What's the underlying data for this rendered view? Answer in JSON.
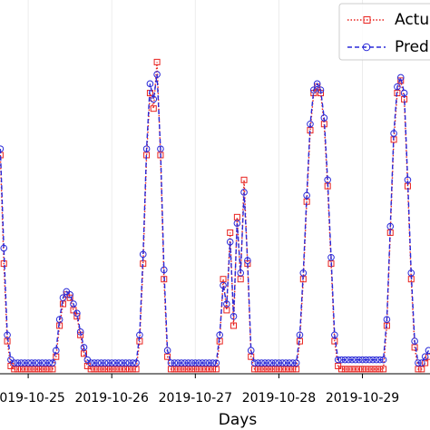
{
  "chart_data": {
    "type": "line",
    "x_label": "Days",
    "x": [
      -8,
      -7,
      -6,
      -5,
      -4,
      -3,
      -2,
      -1,
      0,
      1,
      2,
      3,
      4,
      5,
      6,
      7,
      8,
      9,
      10,
      11,
      12,
      13,
      14,
      15,
      16,
      17,
      18,
      19,
      20,
      21,
      22,
      23,
      24,
      25,
      26,
      27,
      28,
      29,
      30,
      31,
      32,
      33,
      34,
      35,
      36,
      37,
      38,
      39,
      40,
      41,
      42,
      43,
      44,
      45,
      46,
      47,
      48,
      49,
      50,
      51,
      52,
      53,
      54,
      55,
      56,
      57,
      58,
      59,
      60,
      61,
      62,
      63,
      64,
      65,
      66,
      67,
      68,
      69,
      70,
      71,
      72,
      73,
      74,
      75,
      76,
      77,
      78,
      79,
      80,
      81,
      82,
      83,
      84,
      85,
      86,
      87,
      88,
      89,
      90,
      91,
      92,
      93,
      94,
      95,
      96,
      97,
      98,
      99,
      100,
      101,
      102,
      103,
      104,
      105,
      106,
      107,
      108,
      109,
      110,
      111,
      112,
      113,
      114,
      115
    ],
    "series": [
      {
        "name": "Actu",
        "color": "#e8221e",
        "marker": "square",
        "dash": "dotted",
        "values": [
          0.7,
          0.35,
          0.1,
          0.02,
          0.01,
          0.01,
          0.01,
          0.01,
          0.01,
          0.01,
          0.01,
          0.01,
          0.01,
          0.01,
          0.01,
          0.01,
          0.05,
          0.15,
          0.22,
          0.25,
          0.24,
          0.2,
          0.18,
          0.12,
          0.06,
          0.02,
          0.01,
          0.01,
          0.01,
          0.01,
          0.01,
          0.01,
          0.01,
          0.01,
          0.01,
          0.01,
          0.01,
          0.01,
          0.01,
          0.01,
          0.1,
          0.35,
          0.7,
          0.9,
          0.85,
          1.0,
          0.7,
          0.3,
          0.05,
          0.01,
          0.01,
          0.01,
          0.01,
          0.01,
          0.01,
          0.01,
          0.01,
          0.01,
          0.01,
          0.01,
          0.01,
          0.01,
          0.01,
          0.1,
          0.3,
          0.2,
          0.45,
          0.15,
          0.5,
          0.3,
          0.62,
          0.35,
          0.05,
          0.01,
          0.01,
          0.01,
          0.01,
          0.01,
          0.01,
          0.01,
          0.01,
          0.01,
          0.01,
          0.01,
          0.01,
          0.01,
          0.1,
          0.3,
          0.55,
          0.78,
          0.9,
          0.92,
          0.9,
          0.8,
          0.6,
          0.35,
          0.1,
          0.02,
          0.01,
          0.01,
          0.01,
          0.01,
          0.01,
          0.01,
          0.01,
          0.01,
          0.01,
          0.01,
          0.01,
          0.01,
          0.01,
          0.15,
          0.45,
          0.75,
          0.9,
          0.94,
          0.88,
          0.6,
          0.3,
          0.08,
          0.01,
          0.01,
          0.03,
          0.05
        ]
      },
      {
        "name": "Pred",
        "color": "#2a2ad8",
        "marker": "circle",
        "dash": "dashed",
        "values": [
          0.72,
          0.4,
          0.12,
          0.04,
          0.03,
          0.03,
          0.03,
          0.03,
          0.03,
          0.03,
          0.03,
          0.03,
          0.03,
          0.03,
          0.03,
          0.03,
          0.07,
          0.17,
          0.24,
          0.26,
          0.25,
          0.22,
          0.19,
          0.13,
          0.08,
          0.04,
          0.03,
          0.03,
          0.03,
          0.03,
          0.03,
          0.03,
          0.03,
          0.03,
          0.03,
          0.03,
          0.03,
          0.03,
          0.03,
          0.03,
          0.12,
          0.38,
          0.72,
          0.93,
          0.88,
          0.96,
          0.72,
          0.33,
          0.07,
          0.03,
          0.03,
          0.03,
          0.03,
          0.03,
          0.03,
          0.03,
          0.03,
          0.03,
          0.03,
          0.03,
          0.03,
          0.03,
          0.03,
          0.12,
          0.28,
          0.22,
          0.42,
          0.18,
          0.48,
          0.32,
          0.58,
          0.36,
          0.07,
          0.03,
          0.03,
          0.03,
          0.03,
          0.03,
          0.03,
          0.03,
          0.03,
          0.03,
          0.03,
          0.03,
          0.03,
          0.03,
          0.12,
          0.32,
          0.57,
          0.8,
          0.91,
          0.93,
          0.91,
          0.82,
          0.62,
          0.37,
          0.12,
          0.04,
          0.04,
          0.04,
          0.04,
          0.04,
          0.04,
          0.04,
          0.04,
          0.04,
          0.04,
          0.04,
          0.04,
          0.04,
          0.04,
          0.17,
          0.47,
          0.77,
          0.92,
          0.95,
          0.9,
          0.62,
          0.32,
          0.1,
          0.03,
          0.03,
          0.05,
          0.07
        ]
      }
    ],
    "xlim": [
      -8.1,
      115.4
    ],
    "ylim": [
      -0.005,
      1.2
    ],
    "xticks": [
      {
        "value": 0,
        "label": "2019-10-25"
      },
      {
        "value": 24,
        "label": "2019-10-26"
      },
      {
        "value": 48,
        "label": "2019-10-27"
      },
      {
        "value": 72,
        "label": "2019-10-28"
      },
      {
        "value": 96,
        "label": "2019-10-29"
      }
    ],
    "grid": true,
    "legend": "upper right"
  }
}
